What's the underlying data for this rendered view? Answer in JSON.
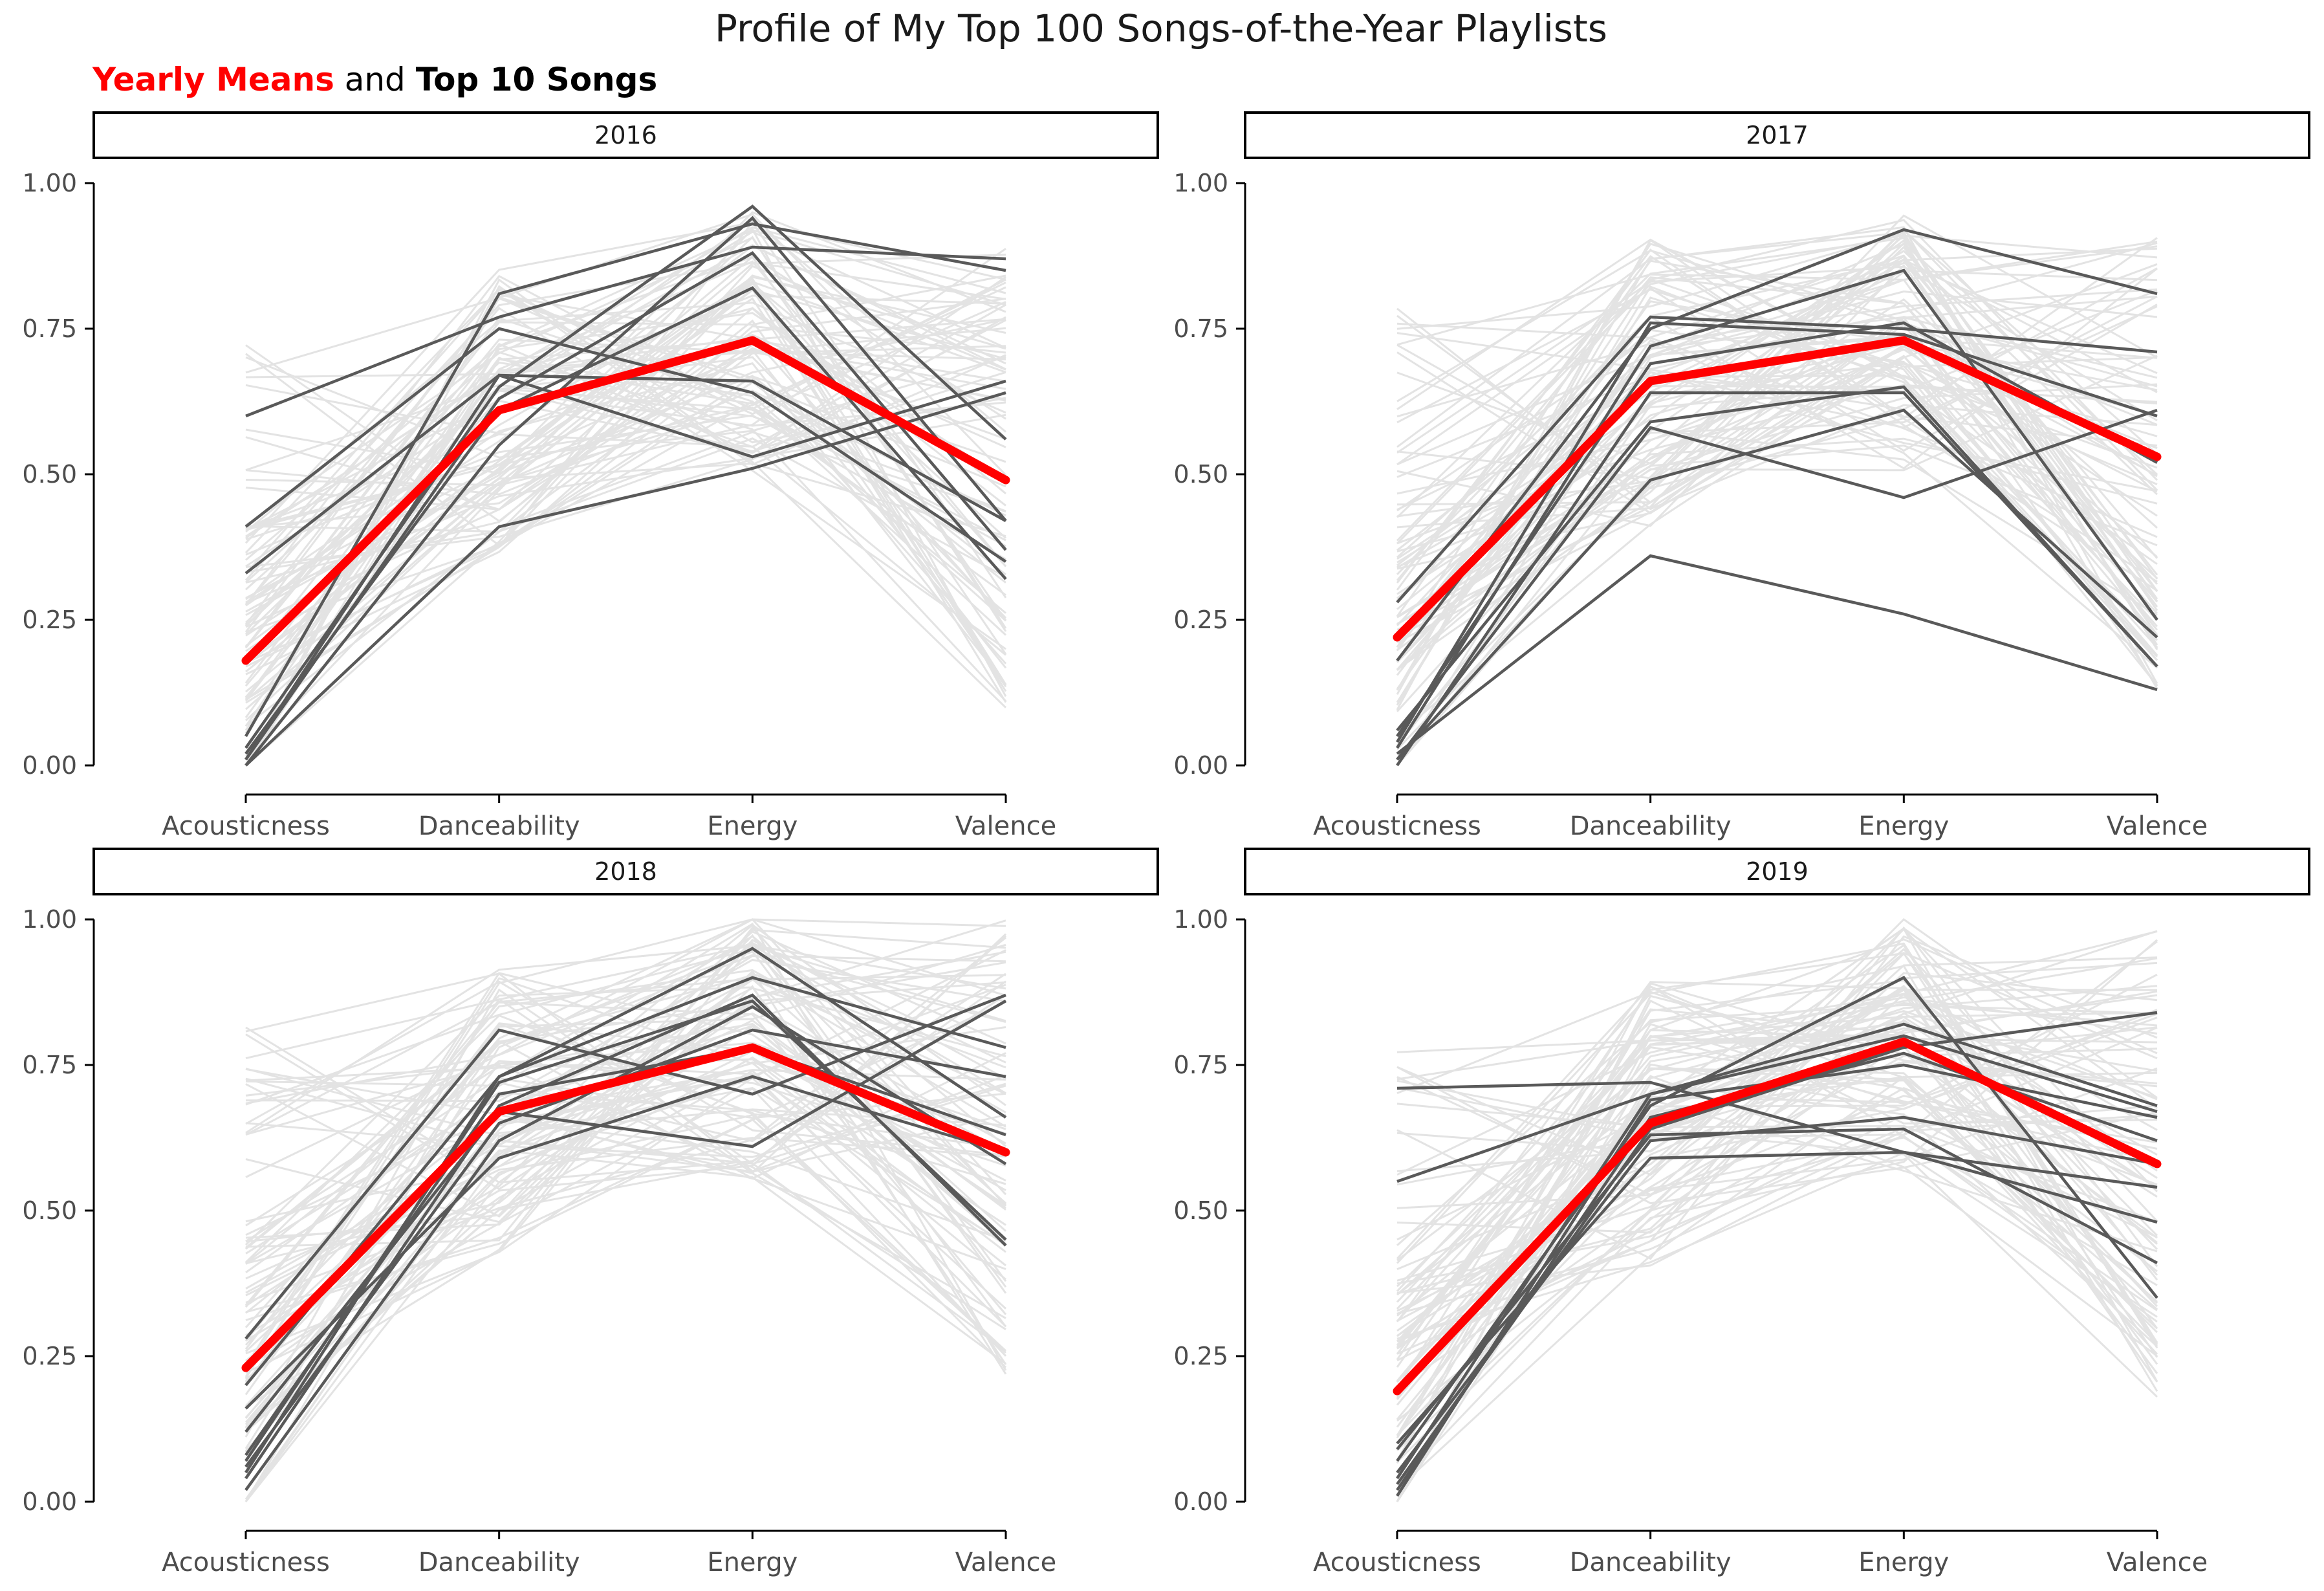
{
  "title": "Profile of My Top 100 Songs-of-the-Year Playlists",
  "subtitle": {
    "part1": "Yearly Means",
    "part2": " and ",
    "part3": "Top 10 Songs"
  },
  "colors": {
    "mean": "#ff0000",
    "top10": "#595959",
    "background_songs": "#e3e3e3",
    "axis": "#000000",
    "tick_text": "#4d4d4d"
  },
  "chart_data": [
    {
      "type": "line",
      "facet": "2016",
      "categories": [
        "Acousticness",
        "Danceability",
        "Energy",
        "Valence"
      ],
      "ylim": [
        0,
        1
      ],
      "yticks": [
        "0.00",
        "0.25",
        "0.50",
        "0.75",
        "1.00"
      ],
      "series": [
        {
          "role": "mean",
          "values": [
            0.18,
            0.61,
            0.73,
            0.49
          ]
        },
        {
          "role": "top10",
          "values": [
            0.6,
            0.77,
            0.89,
            0.87
          ]
        },
        {
          "role": "top10",
          "values": [
            0.41,
            0.75,
            0.64,
            0.35
          ]
        },
        {
          "role": "top10",
          "values": [
            0.33,
            0.67,
            0.66,
            0.42
          ]
        },
        {
          "role": "top10",
          "values": [
            0.05,
            0.81,
            0.93,
            0.85
          ]
        },
        {
          "role": "top10",
          "values": [
            0.03,
            0.65,
            0.96,
            0.56
          ]
        },
        {
          "role": "top10",
          "values": [
            0.02,
            0.61,
            0.82,
            0.32
          ]
        },
        {
          "role": "top10",
          "values": [
            0.01,
            0.67,
            0.53,
            0.66
          ]
        },
        {
          "role": "top10",
          "values": [
            0.0,
            0.41,
            0.51,
            0.64
          ]
        },
        {
          "role": "top10",
          "values": [
            0.0,
            0.55,
            0.94,
            0.42
          ]
        },
        {
          "role": "top10",
          "values": [
            0.01,
            0.63,
            0.88,
            0.37
          ]
        }
      ]
    },
    {
      "type": "line",
      "facet": "2017",
      "categories": [
        "Acousticness",
        "Danceability",
        "Energy",
        "Valence"
      ],
      "ylim": [
        0,
        1
      ],
      "yticks": [
        "0.00",
        "0.25",
        "0.50",
        "0.75",
        "1.00"
      ],
      "series": [
        {
          "role": "mean",
          "values": [
            0.22,
            0.66,
            0.73,
            0.53
          ]
        },
        {
          "role": "top10",
          "values": [
            0.28,
            0.77,
            0.75,
            0.71
          ]
        },
        {
          "role": "top10",
          "values": [
            0.18,
            0.75,
            0.92,
            0.81
          ]
        },
        {
          "role": "top10",
          "values": [
            0.06,
            0.59,
            0.65,
            0.17
          ]
        },
        {
          "role": "top10",
          "values": [
            0.03,
            0.72,
            0.85,
            0.25
          ]
        },
        {
          "role": "top10",
          "values": [
            0.02,
            0.36,
            0.26,
            0.13
          ]
        },
        {
          "role": "top10",
          "values": [
            0.01,
            0.49,
            0.61,
            0.22
          ]
        },
        {
          "role": "top10",
          "values": [
            0.01,
            0.58,
            0.46,
            0.61
          ]
        },
        {
          "role": "top10",
          "values": [
            0.05,
            0.69,
            0.76,
            0.52
          ]
        },
        {
          "role": "top10",
          "values": [
            0.0,
            0.64,
            0.64,
            0.17
          ]
        },
        {
          "role": "top10",
          "values": [
            0.04,
            0.76,
            0.74,
            0.6
          ]
        }
      ]
    },
    {
      "type": "line",
      "facet": "2018",
      "categories": [
        "Acousticness",
        "Danceability",
        "Energy",
        "Valence"
      ],
      "ylim": [
        0,
        1
      ],
      "yticks": [
        "0.00",
        "0.25",
        "0.50",
        "0.75",
        "1.00"
      ],
      "series": [
        {
          "role": "mean",
          "values": [
            0.23,
            0.67,
            0.78,
            0.6
          ]
        },
        {
          "role": "top10",
          "values": [
            0.28,
            0.81,
            0.7,
            0.87
          ]
        },
        {
          "role": "top10",
          "values": [
            0.2,
            0.73,
            0.95,
            0.66
          ]
        },
        {
          "role": "top10",
          "values": [
            0.16,
            0.59,
            0.73,
            0.6
          ]
        },
        {
          "role": "top10",
          "values": [
            0.12,
            0.67,
            0.61,
            0.86
          ]
        },
        {
          "role": "top10",
          "values": [
            0.07,
            0.72,
            0.86,
            0.45
          ]
        },
        {
          "role": "top10",
          "values": [
            0.06,
            0.65,
            0.81,
            0.73
          ]
        },
        {
          "role": "top10",
          "values": [
            0.05,
            0.73,
            0.9,
            0.78
          ]
        },
        {
          "role": "top10",
          "values": [
            0.04,
            0.68,
            0.87,
            0.44
          ]
        },
        {
          "role": "top10",
          "values": [
            0.08,
            0.7,
            0.78,
            0.63
          ]
        },
        {
          "role": "top10",
          "values": [
            0.02,
            0.62,
            0.85,
            0.58
          ]
        }
      ]
    },
    {
      "type": "line",
      "facet": "2019",
      "categories": [
        "Acousticness",
        "Danceability",
        "Energy",
        "Valence"
      ],
      "ylim": [
        0,
        1
      ],
      "yticks": [
        "0.00",
        "0.25",
        "0.50",
        "0.75",
        "1.00"
      ],
      "series": [
        {
          "role": "mean",
          "values": [
            0.19,
            0.65,
            0.79,
            0.58
          ]
        },
        {
          "role": "top10",
          "values": [
            0.71,
            0.72,
            0.6,
            0.48
          ]
        },
        {
          "role": "top10",
          "values": [
            0.55,
            0.7,
            0.82,
            0.68
          ]
        },
        {
          "role": "top10",
          "values": [
            0.1,
            0.59,
            0.6,
            0.54
          ]
        },
        {
          "role": "top10",
          "values": [
            0.09,
            0.63,
            0.64,
            0.41
          ]
        },
        {
          "role": "top10",
          "values": [
            0.07,
            0.68,
            0.9,
            0.35
          ]
        },
        {
          "role": "top10",
          "values": [
            0.05,
            0.62,
            0.66,
            0.58
          ]
        },
        {
          "role": "top10",
          "values": [
            0.04,
            0.7,
            0.8,
            0.67
          ]
        },
        {
          "role": "top10",
          "values": [
            0.03,
            0.64,
            0.78,
            0.84
          ]
        },
        {
          "role": "top10",
          "values": [
            0.02,
            0.66,
            0.77,
            0.62
          ]
        },
        {
          "role": "top10",
          "values": [
            0.01,
            0.69,
            0.75,
            0.66
          ]
        }
      ]
    }
  ]
}
